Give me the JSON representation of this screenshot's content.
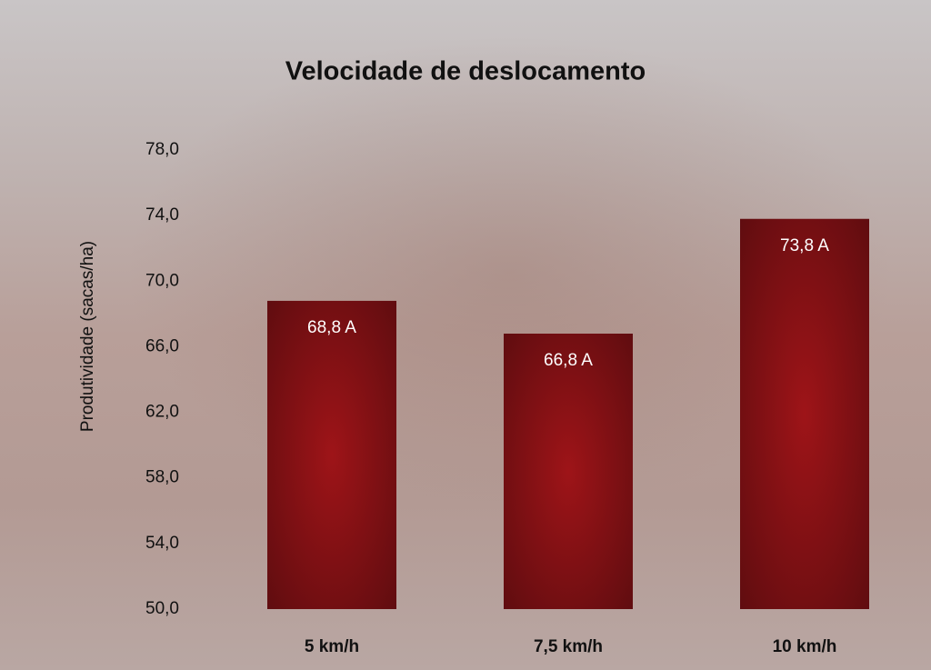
{
  "chart_data": {
    "type": "bar",
    "title": "Velocidade de deslocamento",
    "y_label": "Produtividade (sacas/ha)",
    "categories": [
      "5 km/h",
      "7,5 km/h",
      "10 km/h"
    ],
    "values": [
      68.8,
      66.8,
      73.8
    ],
    "value_labels": [
      "68,8 A",
      "66,8 A",
      "73,8 A"
    ],
    "color": "#8c1216",
    "ylim": [
      50,
      78
    ],
    "yticks": [
      {
        "value": 50,
        "label": "50,0"
      },
      {
        "value": 54,
        "label": "54,0"
      },
      {
        "value": 58,
        "label": "58,0"
      },
      {
        "value": 62,
        "label": "62,0"
      },
      {
        "value": 66,
        "label": "66,0"
      },
      {
        "value": 70,
        "label": "70,0"
      },
      {
        "value": 74,
        "label": "74,0"
      },
      {
        "value": 78,
        "label": "78,0"
      }
    ],
    "grid": false
  }
}
